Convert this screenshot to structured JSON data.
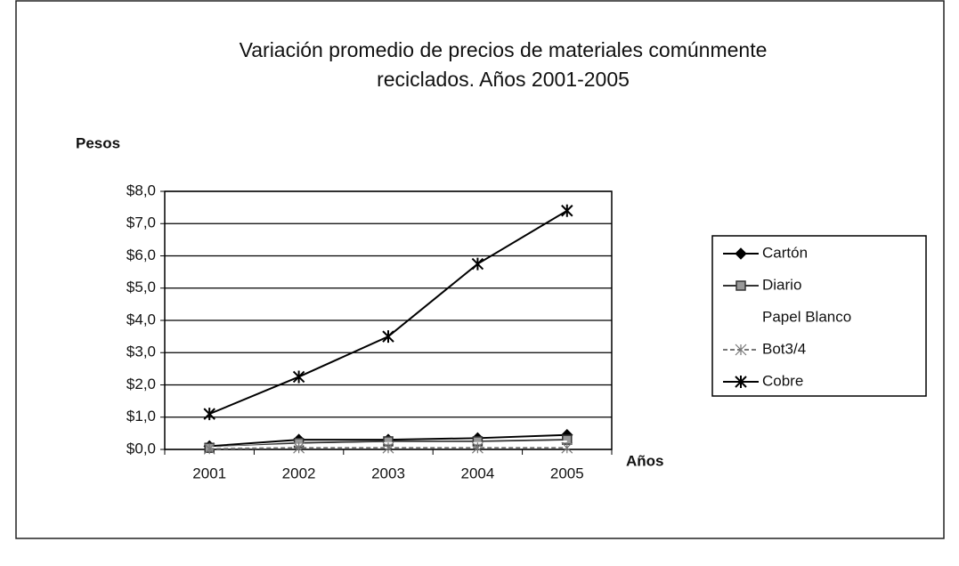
{
  "chart_data": {
    "type": "line",
    "title": "Variación promedio de precios de materiales comúnmente reciclados. Años 2001-2005",
    "y_label": "Pesos",
    "x_label": "Años",
    "categories": [
      "2001",
      "2002",
      "2003",
      "2004",
      "2005"
    ],
    "series": [
      {
        "name": "Cartón",
        "color": "#000000",
        "marker": "diamond",
        "values": [
          0.1,
          0.3,
          0.3,
          0.35,
          0.45
        ]
      },
      {
        "name": "Diario",
        "color": "#333333",
        "marker": "square",
        "values": [
          0.05,
          0.2,
          0.25,
          0.25,
          0.3
        ]
      },
      {
        "name": "Papel Blanco",
        "color": "#ffffff",
        "marker": "none",
        "values": [
          0.05,
          0.15,
          0.2,
          0.2,
          0.25
        ]
      },
      {
        "name": "Bot3/4",
        "color": "#777777",
        "marker": "x",
        "values": [
          0.02,
          0.05,
          0.05,
          0.05,
          0.05
        ]
      },
      {
        "name": "Cobre",
        "color": "#000000",
        "marker": "star",
        "values": [
          1.1,
          2.25,
          3.5,
          5.75,
          7.4
        ]
      }
    ],
    "ylim": [
      0,
      8
    ],
    "yticks": [
      {
        "value": 0,
        "label": "$0,0"
      },
      {
        "value": 1,
        "label": "$1,0"
      },
      {
        "value": 2,
        "label": "$2,0"
      },
      {
        "value": 3,
        "label": "$3,0"
      },
      {
        "value": 4,
        "label": "$4,0"
      },
      {
        "value": 5,
        "label": "$5,0"
      },
      {
        "value": 6,
        "label": "$6,0"
      },
      {
        "value": 7,
        "label": "$7,0"
      },
      {
        "value": 8,
        "label": "$8,0"
      }
    ],
    "grid": true,
    "legend": "right"
  }
}
